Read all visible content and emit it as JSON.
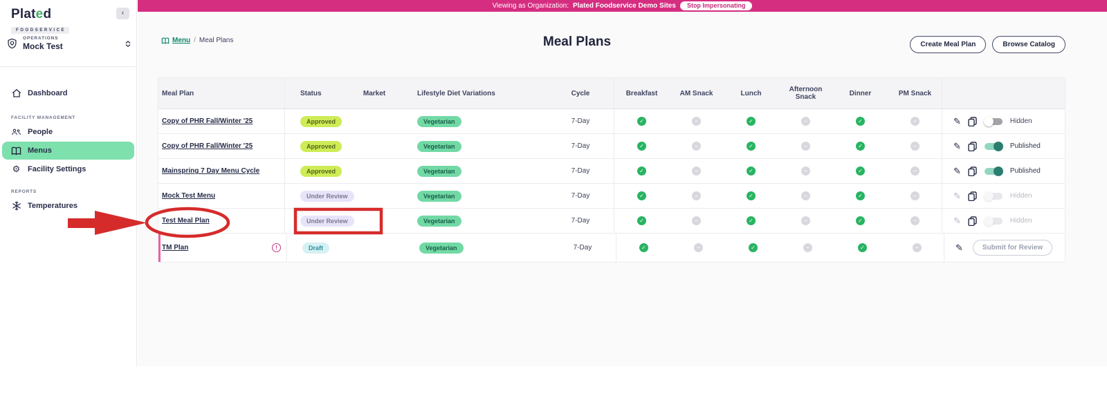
{
  "banner": {
    "prefix": "Viewing as Organization:",
    "organization": "Plated Foodservice Demo Sites",
    "stop_button": "Stop Impersonating"
  },
  "sidebar": {
    "logo": {
      "part1": "Plat",
      "accent_letter": "e",
      "part2": "d",
      "subtitle": "FOODSERVICE"
    },
    "collapse_icon": "‹",
    "org": {
      "label": "OPERATIONS",
      "value": "Mock Test"
    },
    "sections": [
      "FACILITY MANAGEMENT",
      "REPORTS"
    ],
    "items": [
      {
        "label": "Dashboard",
        "icon": "home-icon"
      },
      {
        "label": "People",
        "icon": "people-icon"
      },
      {
        "label": "Menus",
        "icon": "menus-book-icon",
        "active": true
      },
      {
        "label": "Facility Settings",
        "icon": "gear-icon"
      },
      {
        "label": "Temperatures",
        "icon": "snowflake-icon"
      }
    ],
    "gear_glyph": "⚙"
  },
  "page": {
    "breadcrumb": {
      "root": "Menu",
      "separator": "/",
      "current": "Meal Plans"
    },
    "title": "Meal Plans",
    "actions": [
      "Create Meal Plan",
      "Browse Catalog"
    ]
  },
  "table": {
    "columns": [
      "Meal Plan",
      "Status",
      "Market",
      "Lifestyle Diet Variations",
      "Cycle",
      "Breakfast",
      "AM Snack",
      "Lunch",
      "Afternoon Snack",
      "Dinner",
      "PM Snack"
    ],
    "rows": [
      {
        "name": "Copy of PHR Fall/Winter '25",
        "status": "Approved",
        "status_type": "approved",
        "market": "",
        "diet": "Vegetarian",
        "cycle": "7-Day",
        "meals": [
          "check",
          "dash",
          "check",
          "dash",
          "check",
          "dash"
        ],
        "toggle_state": "off",
        "toggle_label": "Hidden"
      },
      {
        "name": "Copy of PHR Fall/Winter '25",
        "status": "Approved",
        "status_type": "approved",
        "market": "",
        "diet": "Vegetarian",
        "cycle": "7-Day",
        "meals": [
          "check",
          "dash",
          "check",
          "dash",
          "check",
          "dash"
        ],
        "toggle_state": "on",
        "toggle_label": "Published"
      },
      {
        "name": "Mainspring 7 Day Menu Cycle",
        "status": "Approved",
        "status_type": "approved",
        "market": "",
        "diet": "Vegetarian",
        "cycle": "7-Day",
        "meals": [
          "check",
          "dash",
          "check",
          "dash",
          "check",
          "dash"
        ],
        "toggle_state": "on",
        "toggle_label": "Published"
      },
      {
        "name": "Mock Test Menu",
        "status": "Under Review",
        "status_type": "review",
        "market": "",
        "diet": "Vegetarian",
        "cycle": "7-Day",
        "meals": [
          "check",
          "dash",
          "check",
          "dash",
          "check",
          "dash"
        ],
        "toggle_state": "disabled",
        "toggle_label": "Hidden"
      },
      {
        "name": "Test Meal Plan",
        "status": "Under Review",
        "status_type": "review",
        "market": "",
        "diet": "Vegetarian",
        "cycle": "7-Day",
        "meals": [
          "check",
          "dash",
          "check",
          "dash",
          "check",
          "dash"
        ],
        "toggle_state": "disabled",
        "toggle_label": "Hidden",
        "annotated": true
      },
      {
        "name": "TM Plan",
        "status": "Draft",
        "status_type": "draft",
        "market": "",
        "diet": "Vegetarian",
        "cycle": "7-Day",
        "meals": [
          "check",
          "dash",
          "check",
          "dash",
          "check",
          "dash"
        ],
        "warning": "!",
        "button": "Submit for Review"
      }
    ]
  },
  "annotations": {
    "color": "#d62b2b",
    "circled_text": "Test Meal Plan",
    "boxed_text": "Under Review"
  },
  "glyphs": {
    "pencil": "✎",
    "check": "✓",
    "dash": "–",
    "warning": "!"
  }
}
